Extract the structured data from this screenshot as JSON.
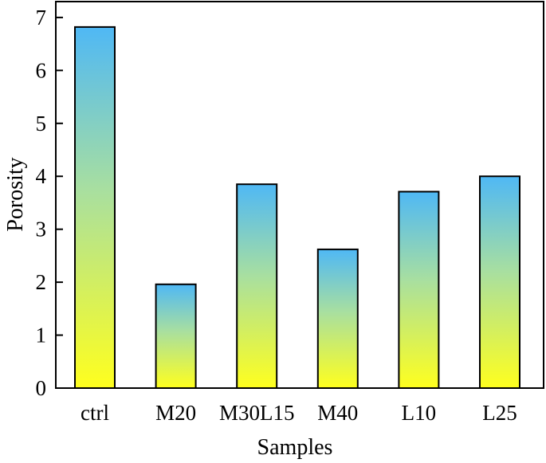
{
  "chart_data": {
    "type": "bar",
    "title": "",
    "xlabel": "Samples",
    "ylabel": "Porosity",
    "categories": [
      "ctrl",
      "M20",
      "M30L15",
      "M40",
      "L10",
      "L25"
    ],
    "values": [
      6.82,
      1.96,
      3.85,
      2.62,
      3.71,
      4.0
    ],
    "ylim": [
      0,
      7.3
    ],
    "yticks": [
      0,
      1,
      2,
      3,
      4,
      5,
      6,
      7
    ],
    "grid": false,
    "legend": "none",
    "bar_gradient": {
      "top": "#4fb8f5",
      "bottom": "#ffff1e"
    }
  }
}
